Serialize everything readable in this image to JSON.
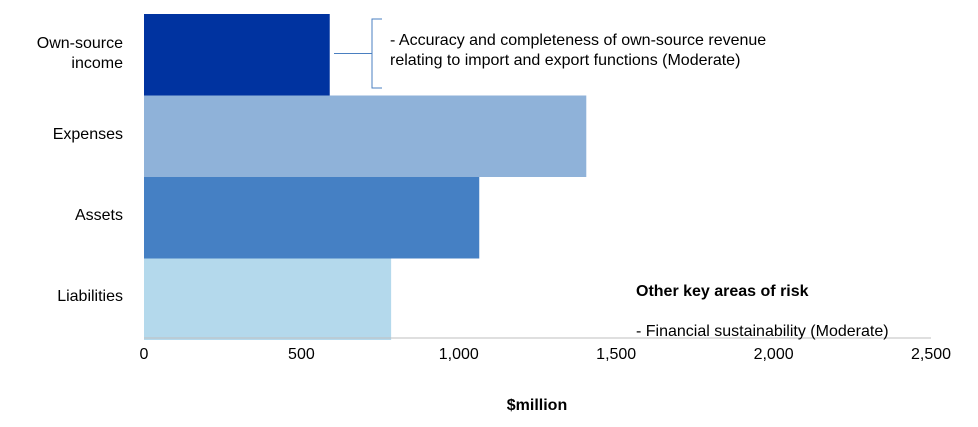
{
  "chart_data": {
    "type": "bar",
    "orientation": "horizontal",
    "categories": [
      "Own-source\nincome",
      "Expenses",
      "Assets",
      "Liabilities"
    ],
    "values": [
      590,
      1405,
      1065,
      785
    ],
    "colors": [
      "#0033a0",
      "#8fb2d9",
      "#4580c4",
      "#b4d9ec"
    ],
    "xlabel": "$million",
    "xlim": [
      0,
      2500
    ],
    "xticks": [
      "0",
      "500",
      "1,000",
      "1,500",
      "2,000",
      "2,500"
    ],
    "grid": false
  },
  "annotations": {
    "income_risk": "- Accuracy and completeness of own-source revenue\nrelating to import and export functions (Moderate)",
    "other_risks_title": "Other key areas of risk",
    "other_risks_item": "- Financial sustainability (Moderate)"
  }
}
